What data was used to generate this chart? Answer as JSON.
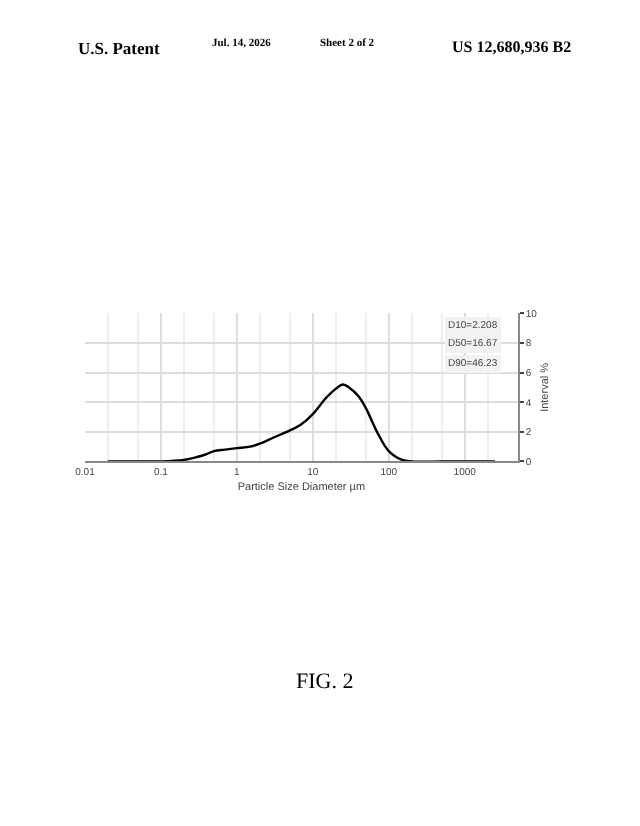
{
  "chart_data": {
    "type": "line",
    "title": "FIG. 2",
    "xlabel": "Particle Size Diameter µm",
    "ylabel": "Interval %",
    "x": [
      0.02,
      0.05,
      0.1,
      0.2,
      0.3,
      0.4,
      0.5,
      0.7,
      1,
      1.5,
      2,
      3,
      5,
      7,
      10,
      15,
      20,
      25,
      30,
      40,
      50,
      70,
      100,
      150,
      200,
      500,
      1000,
      2500
    ],
    "series": [
      {
        "color": "#000000",
        "values": [
          0,
          0,
          0,
          0.1,
          0.3,
          0.5,
          0.7,
          0.8,
          0.9,
          1.0,
          1.2,
          1.6,
          2.1,
          2.5,
          3.2,
          4.3,
          4.9,
          5.2,
          5.0,
          4.4,
          3.6,
          2.0,
          0.7,
          0.1,
          0,
          0,
          0,
          0
        ]
      }
    ],
    "xlim": [
      0.01,
      5000
    ],
    "xticks": [
      0.01,
      0.1,
      1,
      10,
      100,
      1000
    ],
    "ylim": [
      0,
      10
    ],
    "yticks": [
      0,
      2,
      4,
      6,
      8,
      10
    ],
    "log": "x",
    "grid": true,
    "annotations": [
      "U.S. Patent",
      "Jul. 14, 2026",
      "Sheet 2 of 2",
      "US 12,680,936 B2",
      "D10=2.208",
      "D50=16.67",
      "D90=46.23"
    ]
  }
}
